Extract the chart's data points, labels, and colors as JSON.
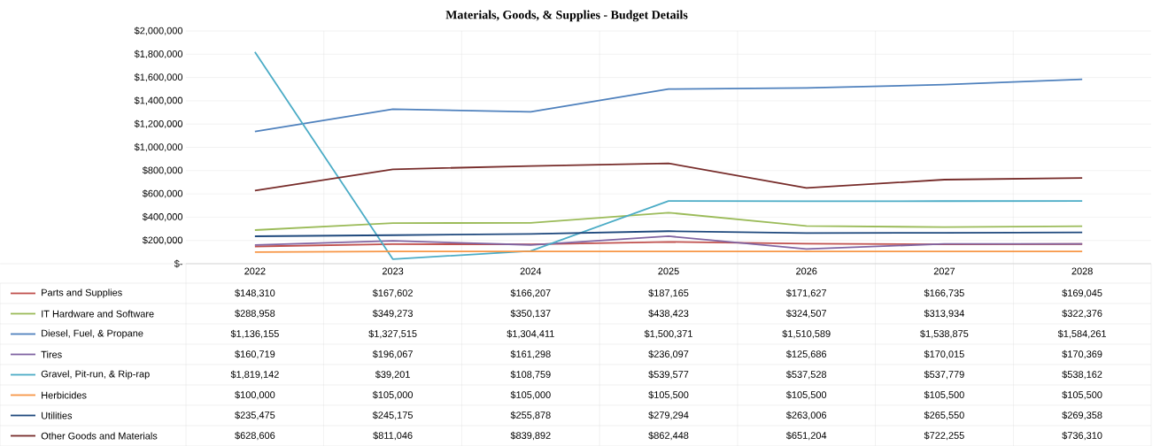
{
  "chart_data": {
    "type": "line",
    "title": "Materials, Goods, & Supplies - Budget Details",
    "categories": [
      "2022",
      "2023",
      "2024",
      "2025",
      "2026",
      "2027",
      "2028"
    ],
    "ylim": [
      0,
      2000000
    ],
    "yticks": [
      {
        "value": 0,
        "label": "$-"
      },
      {
        "value": 200000,
        "label": "$200,000"
      },
      {
        "value": 400000,
        "label": "$400,000"
      },
      {
        "value": 600000,
        "label": "$600,000"
      },
      {
        "value": 800000,
        "label": "$800,000"
      },
      {
        "value": 1000000,
        "label": "$1,000,000"
      },
      {
        "value": 1200000,
        "label": "$1,200,000"
      },
      {
        "value": 1400000,
        "label": "$1,400,000"
      },
      {
        "value": 1600000,
        "label": "$1,600,000"
      },
      {
        "value": 1800000,
        "label": "$1,800,000"
      },
      {
        "value": 2000000,
        "label": "$2,000,000"
      }
    ],
    "grid": true,
    "legend": "bottom",
    "marker": "none",
    "line_style": "solid",
    "series": [
      {
        "name": "Parts and Supplies",
        "color": "#c0504d",
        "values": [
          148310,
          167602,
          166207,
          187165,
          171627,
          166735,
          169045
        ],
        "value_labels": [
          "$148,310",
          "$167,602",
          "$166,207",
          "$187,165",
          "$171,627",
          "$166,735",
          "$169,045"
        ]
      },
      {
        "name": "IT Hardware and Software",
        "color": "#9bbb59",
        "values": [
          288958,
          349273,
          350137,
          438423,
          324507,
          313934,
          322376
        ],
        "value_labels": [
          "$288,958",
          "$349,273",
          "$350,137",
          "$438,423",
          "$324,507",
          "$313,934",
          "$322,376"
        ]
      },
      {
        "name": "Diesel, Fuel, & Propane",
        "color": "#4f81bd",
        "values": [
          1136155,
          1327515,
          1304411,
          1500371,
          1510589,
          1538875,
          1584261
        ],
        "value_labels": [
          "$1,136,155",
          "$1,327,515",
          "$1,304,411",
          "$1,500,371",
          "$1,510,589",
          "$1,538,875",
          "$1,584,261"
        ]
      },
      {
        "name": "Tires",
        "color": "#8064a2",
        "values": [
          160719,
          196067,
          161298,
          236097,
          125686,
          170015,
          170369
        ],
        "value_labels": [
          "$160,719",
          "$196,067",
          "$161,298",
          "$236,097",
          "$125,686",
          "$170,015",
          "$170,369"
        ]
      },
      {
        "name": "Gravel, Pit-run, & Rip-rap",
        "color": "#4bacc6",
        "values": [
          1819142,
          39201,
          108759,
          539577,
          537528,
          537779,
          538162
        ],
        "value_labels": [
          "$1,819,142",
          "$39,201",
          "$108,759",
          "$539,577",
          "$537,528",
          "$537,779",
          "$538,162"
        ]
      },
      {
        "name": "Herbicides",
        "color": "#f79646",
        "values": [
          100000,
          105000,
          105000,
          105500,
          105500,
          105500,
          105500
        ],
        "value_labels": [
          "$100,000",
          "$105,000",
          "$105,000",
          "$105,500",
          "$105,500",
          "$105,500",
          "$105,500"
        ]
      },
      {
        "name": "Utilities",
        "color": "#1f497d",
        "values": [
          235475,
          245175,
          255878,
          279294,
          263006,
          265550,
          269358
        ],
        "value_labels": [
          "$235,475",
          "$245,175",
          "$255,878",
          "$279,294",
          "$263,006",
          "$265,550",
          "$269,358"
        ]
      },
      {
        "name": "Other Goods and Materials",
        "color": "#772c2a",
        "values": [
          628606,
          811046,
          839892,
          862448,
          651204,
          722255,
          736310
        ],
        "value_labels": [
          "$628,606",
          "$811,046",
          "$839,892",
          "$862,448",
          "$651,204",
          "$722,255",
          "$736,310"
        ]
      }
    ]
  }
}
